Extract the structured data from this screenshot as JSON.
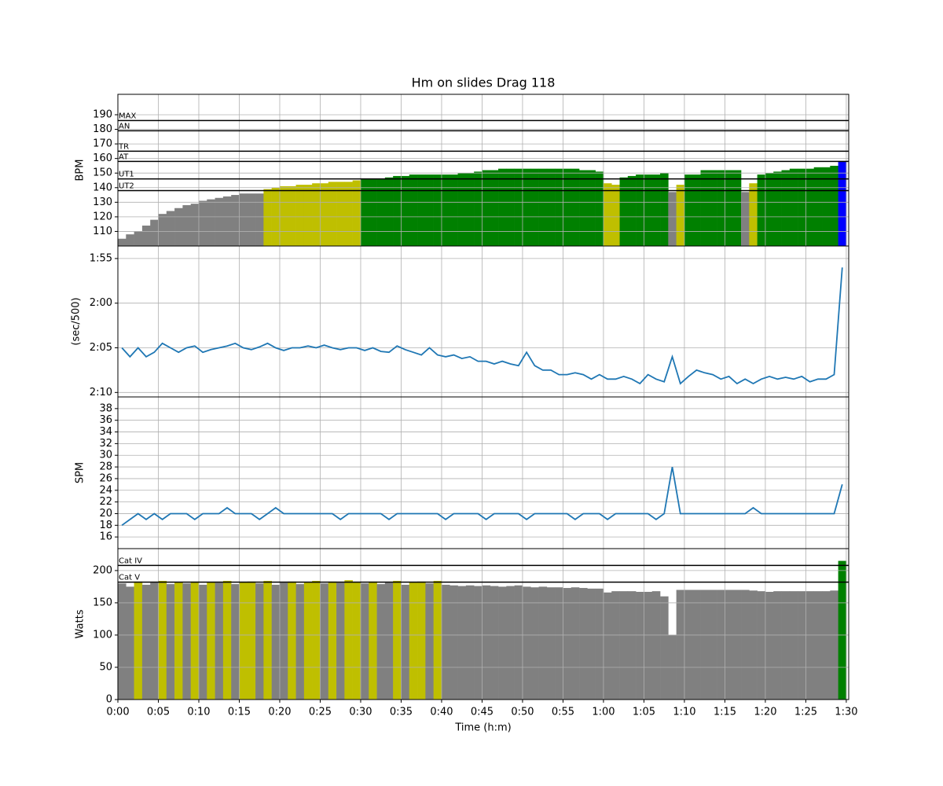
{
  "chart_data": [
    {
      "type": "bar",
      "title": "Hm on slides  Drag 118",
      "ylabel": "BPM",
      "color": "#808080",
      "grid": true,
      "xlim": [
        0,
        90.3
      ],
      "ylim": [
        100,
        204
      ],
      "yticks": [
        110,
        120,
        130,
        140,
        150,
        160,
        170,
        180,
        190
      ],
      "thresholds": [
        {
          "label": "UT2",
          "value": 138,
          "color": "#bfbf00"
        },
        {
          "label": "UT1",
          "value": 146,
          "color": "#008000"
        },
        {
          "label": "AT",
          "value": 158,
          "color": "#0000ff"
        },
        {
          "label": "TR",
          "value": 165,
          "color": "#800080"
        },
        {
          "label": "AN",
          "value": 179,
          "color": "#ff0000"
        },
        {
          "label": "MAX",
          "value": 186,
          "color": "#ff0000"
        }
      ],
      "x": [
        0.5,
        1.5,
        2.5,
        3.5,
        4.5,
        5.5,
        6.5,
        7.5,
        8.5,
        9.5,
        10.5,
        11.5,
        12.5,
        13.5,
        14.5,
        15.5,
        16.5,
        17.5,
        18.5,
        19.5,
        20.5,
        21.5,
        22.5,
        23.5,
        24.5,
        25.5,
        26.5,
        27.5,
        28.5,
        29.5,
        30.5,
        31.5,
        32.5,
        33.5,
        34.5,
        35.5,
        36.5,
        37.5,
        38.5,
        39.5,
        40.5,
        41.5,
        42.5,
        43.5,
        44.5,
        45.5,
        46.5,
        47.5,
        48.5,
        49.5,
        50.5,
        51.5,
        52.5,
        53.5,
        54.5,
        55.5,
        56.5,
        57.5,
        58.5,
        59.5,
        60.5,
        61.5,
        62.5,
        63.5,
        64.5,
        65.5,
        66.5,
        67.5,
        68.5,
        69.5,
        70.5,
        71.5,
        72.5,
        73.5,
        74.5,
        75.5,
        76.5,
        77.5,
        78.5,
        79.5,
        80.5,
        81.5,
        82.5,
        83.5,
        84.5,
        85.5,
        86.5,
        87.5,
        88.5,
        89.5
      ],
      "values": [
        105,
        108,
        110,
        114,
        118,
        122,
        124,
        126,
        128,
        129,
        131,
        132,
        133,
        134,
        135,
        136,
        136,
        136,
        139,
        140,
        141,
        141,
        142,
        142,
        143,
        143,
        144,
        144,
        144,
        145,
        146,
        146,
        146,
        147,
        148,
        148,
        149,
        149,
        149,
        149,
        149,
        149,
        150,
        150,
        151,
        152,
        152,
        153,
        153,
        153,
        153,
        153,
        153,
        153,
        153,
        153,
        153,
        152,
        152,
        151,
        143,
        142,
        147,
        148,
        149,
        149,
        149,
        150,
        137,
        142,
        149,
        149,
        152,
        152,
        152,
        152,
        152,
        137,
        143,
        149,
        150,
        151,
        152,
        153,
        153,
        153,
        154,
        154,
        155,
        158
      ]
    },
    {
      "type": "line",
      "ylabel": "(sec/500)",
      "color": "#1f77b4",
      "grid": true,
      "xlim": [
        0,
        90.3
      ],
      "ylim": [
        130.5,
        113.6
      ],
      "yticks": [
        {
          "value": 115,
          "label": "1:55"
        },
        {
          "value": 120,
          "label": "2:00"
        },
        {
          "value": 125,
          "label": "2:05"
        },
        {
          "value": 130,
          "label": "2:10"
        }
      ],
      "x": [
        0.5,
        1.5,
        2.5,
        3.5,
        4.5,
        5.5,
        6.5,
        7.5,
        8.5,
        9.5,
        10.5,
        11.5,
        12.5,
        13.5,
        14.5,
        15.5,
        16.5,
        17.5,
        18.5,
        19.5,
        20.5,
        21.5,
        22.5,
        23.5,
        24.5,
        25.5,
        26.5,
        27.5,
        28.5,
        29.5,
        30.5,
        31.5,
        32.5,
        33.5,
        34.5,
        35.5,
        36.5,
        37.5,
        38.5,
        39.5,
        40.5,
        41.5,
        42.5,
        43.5,
        44.5,
        45.5,
        46.5,
        47.5,
        48.5,
        49.5,
        50.5,
        51.5,
        52.5,
        53.5,
        54.5,
        55.5,
        56.5,
        57.5,
        58.5,
        59.5,
        60.5,
        61.5,
        62.5,
        63.5,
        64.5,
        65.5,
        66.5,
        67.5,
        68.5,
        69.5,
        70.5,
        71.5,
        72.5,
        73.5,
        74.5,
        75.5,
        76.5,
        77.5,
        78.5,
        79.5,
        80.5,
        81.5,
        82.5,
        83.5,
        84.5,
        85.5,
        86.5,
        87.5,
        88.5,
        89.5
      ],
      "values": [
        125,
        126,
        125,
        126,
        125.5,
        124.5,
        125,
        125.5,
        125,
        124.8,
        125.5,
        125.2,
        125,
        124.8,
        124.5,
        125,
        125.2,
        124.9,
        124.5,
        125,
        125.3,
        125,
        125,
        124.8,
        125,
        124.7,
        125,
        125.2,
        125,
        125,
        125.3,
        125,
        125.4,
        125.5,
        124.8,
        125.2,
        125.5,
        125.8,
        125,
        125.8,
        126,
        125.8,
        126.2,
        126,
        126.5,
        126.5,
        126.8,
        126.5,
        126.8,
        127,
        125.5,
        127,
        127.5,
        127.5,
        128,
        128,
        127.8,
        128,
        128.5,
        128,
        128.5,
        128.5,
        128.2,
        128.5,
        129,
        128,
        128.5,
        128.8,
        126,
        129,
        128.2,
        127.5,
        127.8,
        128,
        128.5,
        128.2,
        129,
        128.5,
        129,
        128.5,
        128.2,
        128.5,
        128.3,
        128.5,
        128.2,
        128.8,
        128.5,
        128.5,
        128,
        116
      ]
    },
    {
      "type": "line",
      "ylabel": "SPM",
      "color": "#1f77b4",
      "grid": true,
      "xlim": [
        0,
        90.3
      ],
      "ylim": [
        14,
        40
      ],
      "yticks": [
        16,
        18,
        20,
        22,
        24,
        26,
        28,
        30,
        32,
        34,
        36,
        38
      ],
      "x": [
        0.5,
        1.5,
        2.5,
        3.5,
        4.5,
        5.5,
        6.5,
        7.5,
        8.5,
        9.5,
        10.5,
        11.5,
        12.5,
        13.5,
        14.5,
        15.5,
        16.5,
        17.5,
        18.5,
        19.5,
        20.5,
        21.5,
        22.5,
        23.5,
        24.5,
        25.5,
        26.5,
        27.5,
        28.5,
        29.5,
        30.5,
        31.5,
        32.5,
        33.5,
        34.5,
        35.5,
        36.5,
        37.5,
        38.5,
        39.5,
        40.5,
        41.5,
        42.5,
        43.5,
        44.5,
        45.5,
        46.5,
        47.5,
        48.5,
        49.5,
        50.5,
        51.5,
        52.5,
        53.5,
        54.5,
        55.5,
        56.5,
        57.5,
        58.5,
        59.5,
        60.5,
        61.5,
        62.5,
        63.5,
        64.5,
        65.5,
        66.5,
        67.5,
        68.5,
        69.5,
        70.5,
        71.5,
        72.5,
        73.5,
        74.5,
        75.5,
        76.5,
        77.5,
        78.5,
        79.5,
        80.5,
        81.5,
        82.5,
        83.5,
        84.5,
        85.5,
        86.5,
        87.5,
        88.5,
        89.5
      ],
      "values": [
        18,
        19,
        20,
        19,
        20,
        19,
        20,
        20,
        20,
        19,
        20,
        20,
        20,
        21,
        20,
        20,
        20,
        19,
        20,
        21,
        20,
        20,
        20,
        20,
        20,
        20,
        20,
        19,
        20,
        20,
        20,
        20,
        20,
        19,
        20,
        20,
        20,
        20,
        20,
        20,
        19,
        20,
        20,
        20,
        20,
        19,
        20,
        20,
        20,
        20,
        19,
        20,
        20,
        20,
        20,
        20,
        19,
        20,
        20,
        20,
        19,
        20,
        20,
        20,
        20,
        20,
        19,
        20,
        28,
        20,
        20,
        20,
        20,
        20,
        20,
        20,
        20,
        20,
        21,
        20,
        20,
        20,
        20,
        20,
        20,
        20,
        20,
        20,
        20,
        25
      ]
    },
    {
      "type": "bar",
      "ylabel": "Watts",
      "xlabel": "Time (h:m)",
      "color": "#808080",
      "grid": true,
      "xlim": [
        0,
        90.3
      ],
      "ylim": [
        0,
        234
      ],
      "yticks": [
        0,
        50,
        100,
        150,
        200
      ],
      "xticks": [
        {
          "value": 0,
          "label": "0:00"
        },
        {
          "value": 5,
          "label": "0:05"
        },
        {
          "value": 10,
          "label": "0:10"
        },
        {
          "value": 15,
          "label": "0:15"
        },
        {
          "value": 20,
          "label": "0:20"
        },
        {
          "value": 25,
          "label": "0:25"
        },
        {
          "value": 30,
          "label": "0:30"
        },
        {
          "value": 35,
          "label": "0:35"
        },
        {
          "value": 40,
          "label": "0:40"
        },
        {
          "value": 45,
          "label": "0:45"
        },
        {
          "value": 50,
          "label": "0:50"
        },
        {
          "value": 55,
          "label": "0:55"
        },
        {
          "value": 60,
          "label": "1:00"
        },
        {
          "value": 65,
          "label": "1:05"
        },
        {
          "value": 70,
          "label": "1:10"
        },
        {
          "value": 75,
          "label": "1:15"
        },
        {
          "value": 80,
          "label": "1:20"
        },
        {
          "value": 85,
          "label": "1:25"
        },
        {
          "value": 90,
          "label": "1:30"
        }
      ],
      "thresholds": [
        {
          "label": "Cat V",
          "value": 182,
          "color": "#bfbf00"
        },
        {
          "label": "Cat IV",
          "value": 208,
          "color": "#008000"
        }
      ],
      "x": [
        0.5,
        1.5,
        2.5,
        3.5,
        4.5,
        5.5,
        6.5,
        7.5,
        8.5,
        9.5,
        10.5,
        11.5,
        12.5,
        13.5,
        14.5,
        15.5,
        16.5,
        17.5,
        18.5,
        19.5,
        20.5,
        21.5,
        22.5,
        23.5,
        24.5,
        25.5,
        26.5,
        27.5,
        28.5,
        29.5,
        30.5,
        31.5,
        32.5,
        33.5,
        34.5,
        35.5,
        36.5,
        37.5,
        38.5,
        39.5,
        40.5,
        41.5,
        42.5,
        43.5,
        44.5,
        45.5,
        46.5,
        47.5,
        48.5,
        49.5,
        50.5,
        51.5,
        52.5,
        53.5,
        54.5,
        55.5,
        56.5,
        57.5,
        58.5,
        59.5,
        60.5,
        61.5,
        62.5,
        63.5,
        64.5,
        65.5,
        66.5,
        67.5,
        68.5,
        69.5,
        70.5,
        71.5,
        72.5,
        73.5,
        74.5,
        75.5,
        76.5,
        77.5,
        78.5,
        79.5,
        80.5,
        81.5,
        82.5,
        83.5,
        84.5,
        85.5,
        86.5,
        87.5,
        88.5,
        89.5
      ],
      "values": [
        180,
        175,
        183,
        178,
        181,
        184,
        179,
        182,
        180,
        183,
        178,
        182,
        181,
        184,
        179,
        182,
        183,
        180,
        184,
        178,
        181,
        183,
        179,
        182,
        184,
        180,
        183,
        181,
        185,
        182,
        180,
        183,
        179,
        181,
        184,
        178,
        182,
        183,
        180,
        184,
        178,
        177,
        176,
        177,
        176,
        177,
        176,
        175,
        176,
        177,
        175,
        174,
        175,
        174,
        174,
        173,
        174,
        173,
        172,
        172,
        166,
        168,
        168,
        168,
        167,
        167,
        168,
        160,
        100,
        170,
        170,
        170,
        170,
        170,
        170,
        170,
        170,
        170,
        169,
        168,
        167,
        168,
        168,
        168,
        168,
        168,
        168,
        168,
        169,
        215
      ]
    }
  ]
}
